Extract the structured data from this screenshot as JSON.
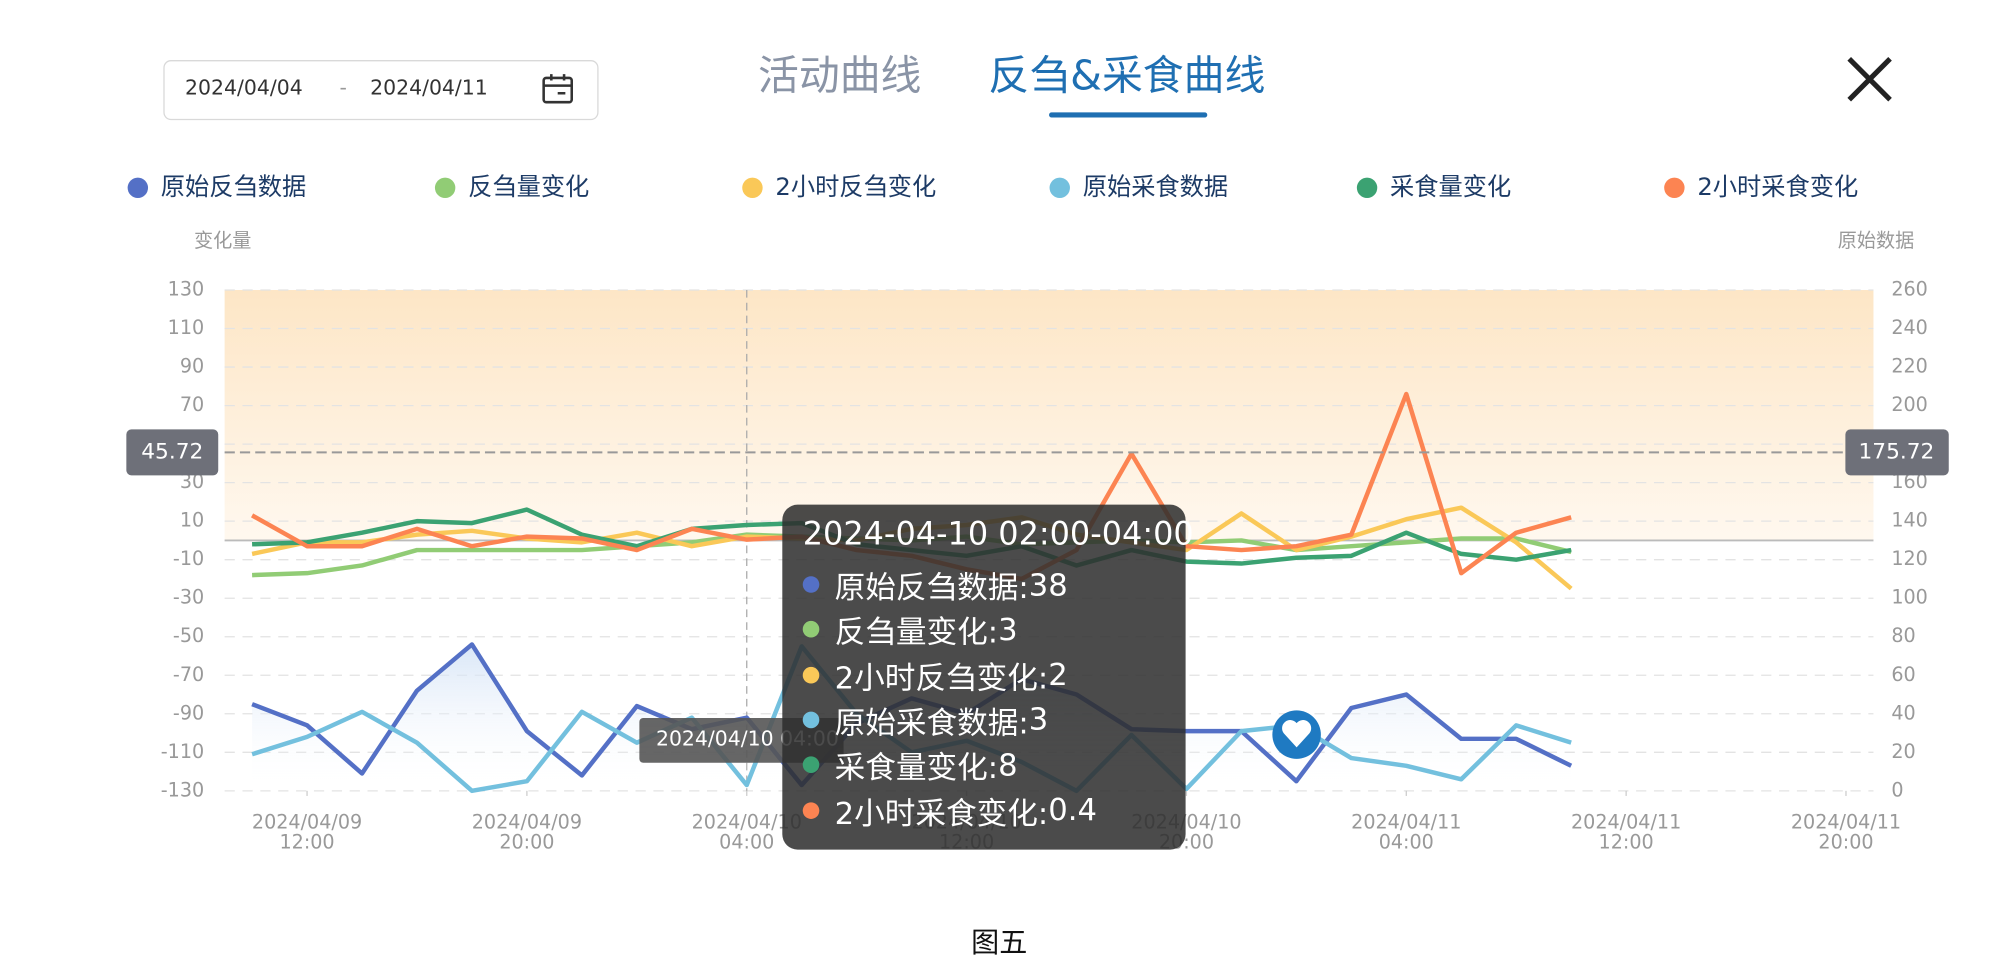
{
  "header": {
    "date_start": "2024/04/04",
    "date_separator": "-",
    "date_end": "2024/04/11",
    "tabs": [
      "活动曲线",
      "反刍&采食曲线"
    ]
  },
  "chart_data": {
    "type": "line",
    "y_label": "变化量",
    "y2_label": "原始数据",
    "x": [
      "2024/04/09 10:00",
      "2024/04/09 12:00",
      "2024/04/09 14:00",
      "2024/04/09 16:00",
      "2024/04/09 18:00",
      "2024/04/09 20:00",
      "2024/04/09 22:00",
      "2024/04/10 00:00",
      "2024/04/10 02:00",
      "2024/04/10 04:00",
      "2024/04/10 06:00",
      "2024/04/10 08:00",
      "2024/04/10 10:00",
      "2024/04/10 12:00",
      "2024/04/10 14:00",
      "2024/04/10 16:00",
      "2024/04/10 18:00",
      "2024/04/10 20:00",
      "2024/04/10 22:00",
      "2024/04/11 00:00",
      "2024/04/11 02:00",
      "2024/04/11 04:00",
      "2024/04/11 06:00",
      "2024/04/11 08:00",
      "2024/04/11 10:00"
    ],
    "xlim": [
      "2024/04/09 09:00",
      "2024/04/11 21:00"
    ],
    "xticks": [
      {
        "value": "2024/04/09 12:00",
        "label": [
          "2024/04/09",
          "12:00"
        ]
      },
      {
        "value": "2024/04/09 20:00",
        "label": [
          "2024/04/09",
          "20:00"
        ]
      },
      {
        "value": "2024/04/10 04:00",
        "label": [
          "2024/04/10",
          "04:00"
        ]
      },
      {
        "value": "2024/04/10 12:00",
        "label": [
          "2024/04/10",
          "12:00"
        ]
      },
      {
        "value": "2024/04/10 20:00",
        "label": [
          "2024/04/10",
          "20:00"
        ]
      },
      {
        "value": "2024/04/11 04:00",
        "label": [
          "2024/04/11",
          "04:00"
        ]
      },
      {
        "value": "2024/04/11 12:00",
        "label": [
          "2024/04/11",
          "12:00"
        ]
      },
      {
        "value": "2024/04/11 20:00",
        "label": [
          "2024/04/11",
          "20:00"
        ]
      }
    ],
    "ylim": [
      -130,
      130
    ],
    "yticks": [
      130,
      110,
      90,
      70,
      50,
      30,
      10,
      -10,
      -30,
      -50,
      -70,
      -90,
      -110,
      -130
    ],
    "y2lim": [
      0,
      260
    ],
    "y2ticks": [
      260,
      240,
      220,
      200,
      180,
      160,
      140,
      120,
      100,
      80,
      60,
      40,
      20,
      0
    ],
    "grid": true,
    "series": [
      {
        "name": "原始反刍数据",
        "color": "#5470c6",
        "axis": "y2",
        "values": [
          45,
          34,
          9,
          52,
          76,
          31,
          8,
          44,
          32,
          38,
          3,
          35,
          48,
          40,
          58,
          50,
          32,
          31,
          31,
          5,
          43,
          50,
          27,
          27,
          13
        ]
      },
      {
        "name": "反刍量变化",
        "color": "#91cc75",
        "values": [
          -18,
          -17,
          -13,
          -5,
          -5,
          -5,
          -5,
          -3,
          -1,
          3,
          2,
          1,
          0,
          2,
          -2,
          -1,
          0,
          -1,
          0,
          -5,
          -3,
          -1,
          1,
          1,
          -6
        ]
      },
      {
        "name": "2小时反刍变化",
        "color": "#fac858",
        "values": [
          -7,
          -1,
          -1,
          3,
          5,
          1,
          -1,
          4,
          -3,
          2,
          1,
          0,
          6,
          8,
          12,
          3,
          -1,
          -5,
          14,
          -5,
          2,
          11,
          17,
          -1,
          -25
        ]
      },
      {
        "name": "原始采食数据",
        "color": "#73c0de",
        "axis": "y2",
        "values": [
          19,
          28,
          41,
          25,
          0,
          5,
          41,
          25,
          38,
          3,
          75,
          40,
          20,
          26,
          15,
          0,
          29,
          1,
          31,
          34,
          17,
          13,
          6,
          34,
          25
        ]
      },
      {
        "name": "采食量变化",
        "color": "#3ba272",
        "values": [
          -2,
          -1,
          4,
          10,
          9,
          16,
          3,
          -3,
          6,
          8,
          9,
          -2,
          -5,
          -8,
          -3,
          -13,
          -5,
          -11,
          -12,
          -9,
          -8,
          4,
          -7,
          -10,
          -5
        ]
      },
      {
        "name": "2小时采食变化",
        "color": "#fc8452",
        "values": [
          13,
          -3,
          -3,
          6,
          -3,
          2,
          1,
          -5,
          6,
          0.4,
          2,
          -5,
          -8,
          -15,
          -20,
          -5,
          45,
          -3,
          -5,
          -3,
          3,
          76,
          -17,
          4,
          12
        ]
      }
    ],
    "markline": {
      "y": 45.72,
      "y2": 175.72
    },
    "pointer": "2024/04/10 04:00",
    "tooltip_title": "2024-04-10 02:00-04:00"
  },
  "caption": "图五"
}
